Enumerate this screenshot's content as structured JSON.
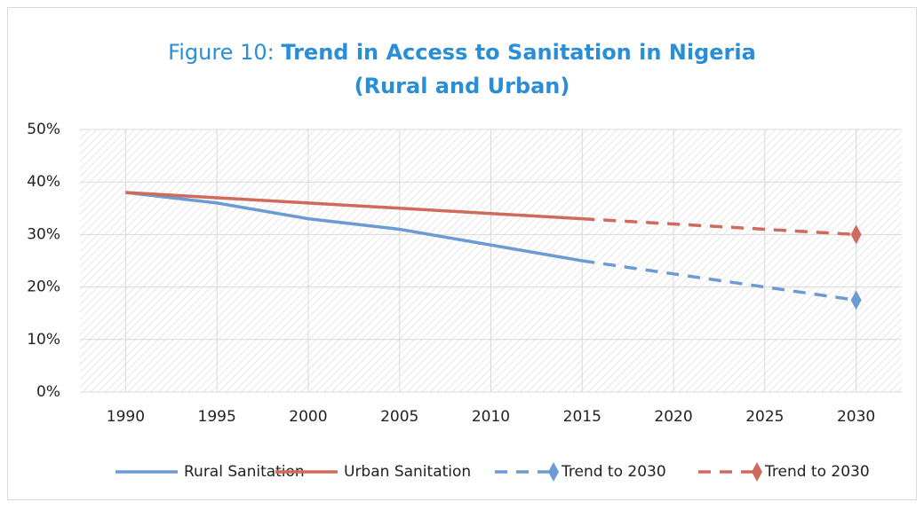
{
  "chart_data": {
    "type": "line",
    "title": {
      "prefix": "Figure 10:",
      "lines": [
        "Trend in Access to Sanitation in Nigeria",
        "(Rural and Urban)"
      ]
    },
    "xlim": [
      1987.5,
      2032.5
    ],
    "xticks": [
      1990,
      1995,
      2000,
      2005,
      2010,
      2015,
      2020,
      2025,
      2030
    ],
    "ylim": [
      0,
      50
    ],
    "yticks": [
      {
        "value": 0,
        "label": "0%"
      },
      {
        "value": 10,
        "label": "10%"
      },
      {
        "value": 20,
        "label": "20%"
      },
      {
        "value": 30,
        "label": "30%"
      },
      {
        "value": 40,
        "label": "40%"
      },
      {
        "value": 50,
        "label": "50%"
      }
    ],
    "grid": true,
    "legend": "bottom",
    "series": [
      {
        "name": "Rural Sanitation",
        "color": "#6b9bd2",
        "dash": false,
        "x": [
          1990,
          1995,
          2000,
          2005,
          2010,
          2015
        ],
        "values": [
          38,
          36,
          33,
          31,
          28,
          25
        ]
      },
      {
        "name": "Urban Sanitation",
        "color": "#cf6a5d",
        "dash": false,
        "x": [
          1990,
          1995,
          2000,
          2005,
          2010,
          2015
        ],
        "values": [
          38,
          37,
          36,
          35,
          34,
          33
        ]
      },
      {
        "name": "Trend to 2030",
        "color": "#6b9bd2",
        "dash": true,
        "x": [
          2015,
          2030
        ],
        "values": [
          25,
          17.5
        ],
        "markers": [
          null,
          "diamond"
        ]
      },
      {
        "name": "Trend to 2030",
        "color": "#cf6a5d",
        "dash": true,
        "x": [
          2015,
          2030
        ],
        "values": [
          33,
          30
        ],
        "markers": [
          null,
          "diamond"
        ]
      }
    ]
  }
}
